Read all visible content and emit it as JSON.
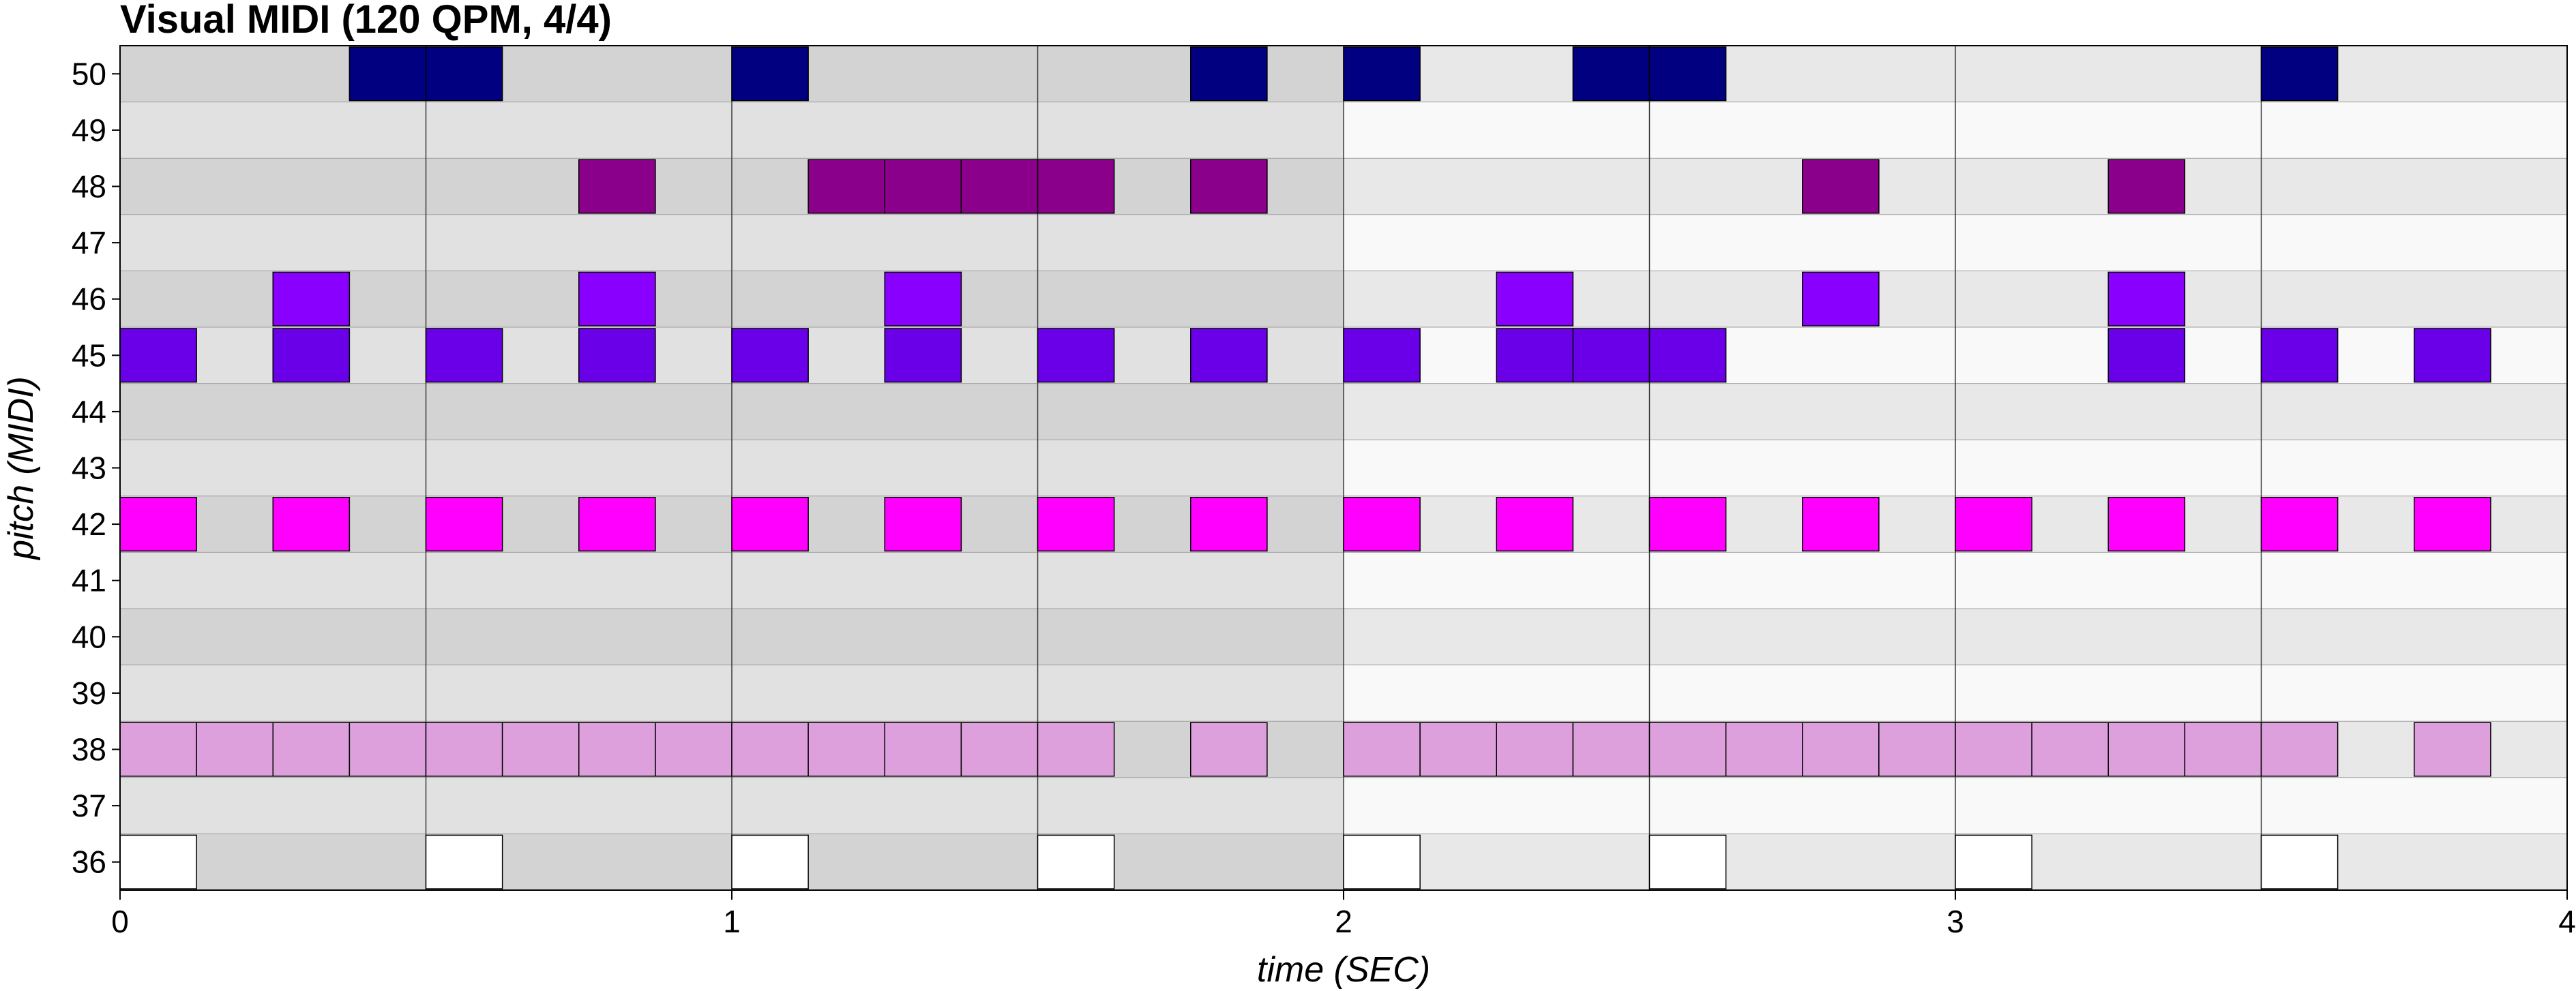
{
  "chart_data": {
    "type": "piano-roll",
    "title": "Visual MIDI (120 QPM, 4/4)",
    "xlabel": "time (SEC)",
    "ylabel": "pitch (MIDI)",
    "xlim": [
      0,
      4
    ],
    "ylim": [
      36,
      50
    ],
    "x_ticks": [
      "0",
      "1",
      "2",
      "3",
      "4"
    ],
    "y_ticks": [
      "50",
      "49",
      "48",
      "47",
      "46",
      "45",
      "44",
      "43",
      "42",
      "41",
      "40",
      "39",
      "38",
      "37",
      "36"
    ],
    "note_duration": 0.125,
    "colors": {
      "background_dark_bar": "#d3d3d3",
      "background_light_bar": "#e8e8e8",
      "background_dark_bar_alt": "#e1e1e1",
      "background_light_bar_alt": "#f9f9f9",
      "note_stroke": "#000000"
    },
    "series": [
      {
        "pitch": 50,
        "color": "#000080",
        "starts": [
          0.375,
          0.5,
          1.0,
          1.75,
          2.0,
          2.375,
          2.5,
          3.5
        ]
      },
      {
        "pitch": 48,
        "color": "#8b008b",
        "starts": [
          0.75,
          1.125,
          1.25,
          1.375,
          1.5,
          1.75,
          2.75,
          3.25
        ]
      },
      {
        "pitch": 46,
        "color": "#8a00ff",
        "starts": [
          0.25,
          0.75,
          1.25,
          2.25,
          2.75,
          3.25
        ]
      },
      {
        "pitch": 45,
        "color": "#6a00e8",
        "starts": [
          0.0,
          0.25,
          0.5,
          0.75,
          1.0,
          1.25,
          1.5,
          1.75,
          2.0,
          2.25,
          2.375,
          2.5,
          3.25,
          3.5,
          3.75
        ]
      },
      {
        "pitch": 42,
        "color": "#ff00ff",
        "starts": [
          0.0,
          0.25,
          0.5,
          0.75,
          1.0,
          1.25,
          1.5,
          1.75,
          2.0,
          2.25,
          2.5,
          2.75,
          3.0,
          3.25,
          3.5,
          3.75
        ]
      },
      {
        "pitch": 38,
        "color": "#dda0dd",
        "starts": [
          0.0,
          0.125,
          0.25,
          0.375,
          0.5,
          0.625,
          0.75,
          0.875,
          1.0,
          1.125,
          1.25,
          1.375,
          1.5,
          1.75,
          2.0,
          2.125,
          2.25,
          2.375,
          2.5,
          2.625,
          2.75,
          2.875,
          3.0,
          3.125,
          3.25,
          3.375,
          3.5,
          3.75
        ]
      },
      {
        "pitch": 36,
        "color": "#ffffff",
        "starts": [
          0.0,
          0.5,
          1.0,
          1.5,
          2.0,
          2.5,
          3.0,
          3.5
        ]
      }
    ]
  }
}
